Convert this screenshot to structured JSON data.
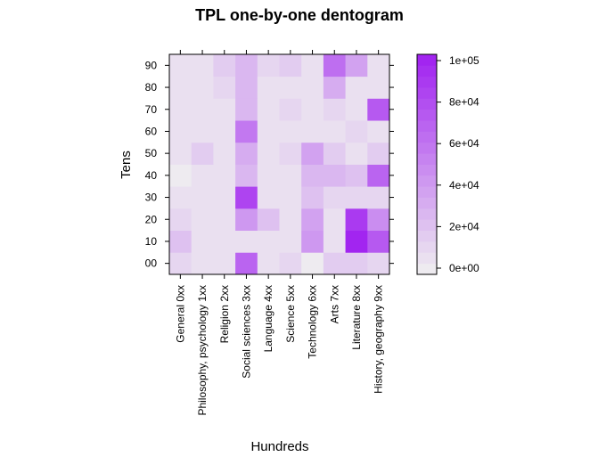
{
  "chart_data": {
    "type": "heatmap",
    "title": "TPL one-by-one dentogram",
    "xlabel": "Hundreds",
    "ylabel": "Tens",
    "x_categories": [
      "General 0xx",
      "Philosophy, psychology 1xx",
      "Religion 2xx",
      "Social sciences 3xx",
      "Language 4xx",
      "Science 5xx",
      "Technology 6xx",
      "Arts 7xx",
      "Literature 8xx",
      "History, geography 9xx"
    ],
    "y_categories": [
      "00",
      "10",
      "20",
      "30",
      "40",
      "50",
      "60",
      "70",
      "80",
      "90"
    ],
    "values": [
      [
        12000,
        6000,
        6000,
        65000,
        6000,
        10000,
        4000,
        18000,
        18000,
        10000
      ],
      [
        20000,
        6000,
        6000,
        6000,
        6000,
        6000,
        40000,
        6000,
        95000,
        70000
      ],
      [
        12000,
        6000,
        6000,
        40000,
        20000,
        6000,
        35000,
        6000,
        85000,
        45000
      ],
      [
        6000,
        6000,
        6000,
        80000,
        6000,
        6000,
        20000,
        10000,
        10000,
        10000
      ],
      [
        2000,
        6000,
        6000,
        25000,
        6000,
        6000,
        28000,
        28000,
        20000,
        65000
      ],
      [
        6000,
        18000,
        6000,
        30000,
        6000,
        10000,
        35000,
        18000,
        6000,
        18000
      ],
      [
        6000,
        6000,
        6000,
        55000,
        6000,
        6000,
        6000,
        6000,
        10000,
        6000
      ],
      [
        6000,
        6000,
        6000,
        25000,
        6000,
        12000,
        6000,
        12000,
        6000,
        70000
      ],
      [
        6000,
        6000,
        12000,
        25000,
        6000,
        6000,
        6000,
        30000,
        6000,
        6000
      ],
      [
        6000,
        6000,
        18000,
        25000,
        10000,
        18000,
        6000,
        60000,
        35000,
        6000
      ]
    ],
    "colorbar": {
      "min": 0,
      "max": 100000,
      "tick_values": [
        0,
        20000,
        40000,
        60000,
        80000,
        100000
      ],
      "tick_labels": [
        "0e+00",
        "2e+04",
        "4e+04",
        "6e+04",
        "8e+04",
        "1e+05"
      ],
      "low_color": "#f0f0f0",
      "high_color": "#a020f0"
    },
    "legend_position": "right",
    "grid": false
  }
}
